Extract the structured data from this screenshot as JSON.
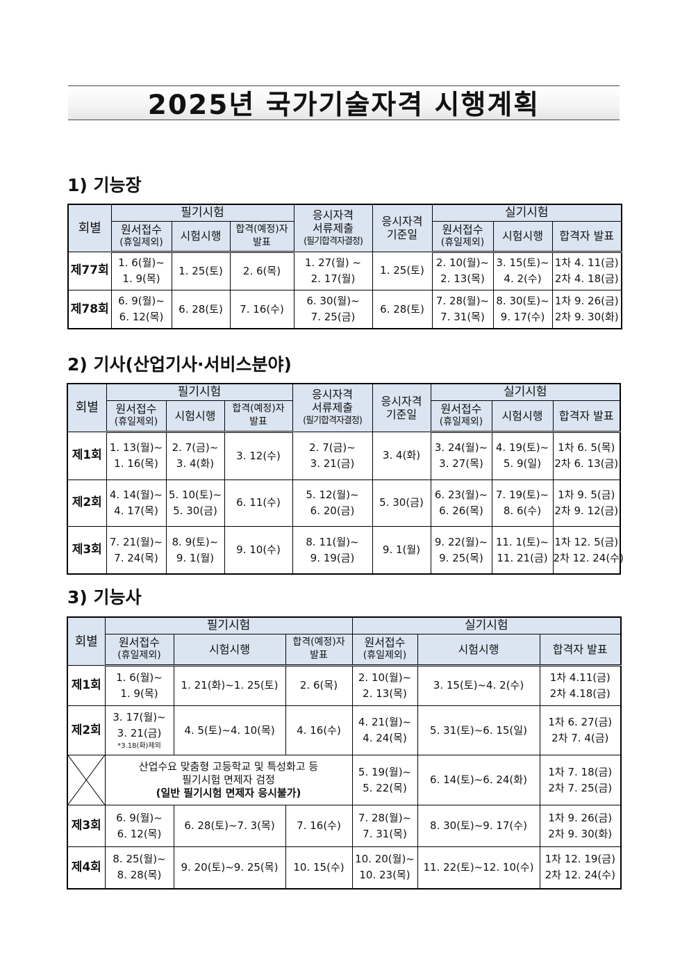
{
  "title": "2025년 국가기술자격 시행계획",
  "sections": {
    "s1": "1)  기능장",
    "s2": "2)  기사(산업기사·서비스분야)",
    "s3": "3)  기능사"
  },
  "headers": {
    "round": "회별",
    "written": "필기시험",
    "practical": "실기시험",
    "apply_1": "원서접수",
    "apply_2": "(휴일제외)",
    "exam": "시험시행",
    "pass_1": "합격(예정)자",
    "pass_2": "발표",
    "docs_1": "응시자격",
    "docs_2": "서류제출",
    "docs_3": "(필기합격자결정)",
    "basis_1": "응시자격",
    "basis_2": "기준일",
    "announce": "합격자 발표"
  },
  "table1": {
    "rows": [
      {
        "round": "제77회",
        "w_apply": [
          "1. 6(월)~",
          "1. 9(목)"
        ],
        "w_exam": "1. 25(토)",
        "w_pass": "2. 6(목)",
        "docs": [
          "1. 27(월) ~",
          "2. 17(월)"
        ],
        "basis": "1. 25(토)",
        "p_apply": [
          "2. 10(월)~",
          "2. 13(목)"
        ],
        "p_exam": [
          "3. 15(토)~",
          "4. 2(수)"
        ],
        "p_pass": [
          "1차 4. 11(금)",
          "2차 4. 18(금)"
        ]
      },
      {
        "round": "제78회",
        "w_apply": [
          "6. 9(월)~",
          "6. 12(목)"
        ],
        "w_exam": "6. 28(토)",
        "w_pass": "7. 16(수)",
        "docs": [
          "6. 30(월)~",
          "7. 25(금)"
        ],
        "basis": "6. 28(토)",
        "p_apply": [
          "7. 28(월)~",
          "7. 31(목)"
        ],
        "p_exam": [
          "8. 30(토)~",
          "9. 17(수)"
        ],
        "p_pass": [
          "1차 9. 26(금)",
          "2차 9. 30(화)"
        ]
      }
    ]
  },
  "table2": {
    "rows": [
      {
        "round": "제1회",
        "w_apply": [
          "1. 13(월)~",
          "1. 16(목)"
        ],
        "w_exam": [
          "2. 7(금)~",
          "3. 4(화)"
        ],
        "w_pass": "3. 12(수)",
        "docs": [
          "2. 7(금)~",
          "3. 21(금)"
        ],
        "basis": "3. 4(화)",
        "p_apply": [
          "3. 24(월)~",
          "3. 27(목)"
        ],
        "p_exam": [
          "4. 19(토)~",
          "5. 9(일)"
        ],
        "p_pass": [
          "1차 6. 5(목)",
          "2차 6. 13(금)"
        ]
      },
      {
        "round": "제2회",
        "w_apply": [
          "4. 14(월)~",
          "4. 17(목)"
        ],
        "w_exam": [
          "5. 10(토)~",
          "5. 30(금)"
        ],
        "w_pass": "6. 11(수)",
        "docs": [
          "5. 12(월)~",
          "6. 20(금)"
        ],
        "basis": "5. 30(금)",
        "p_apply": [
          "6. 23(월)~",
          "6. 26(목)"
        ],
        "p_exam": [
          "7. 19(토)~",
          "8. 6(수)"
        ],
        "p_pass": [
          "1차 9.  5(금)",
          "2차 9. 12(금)"
        ]
      },
      {
        "round": "제3회",
        "w_apply": [
          "7. 21(월)~",
          "7. 24(목)"
        ],
        "w_exam": [
          "8. 9(토)~",
          "9. 1(월)"
        ],
        "w_pass": "9. 10(수)",
        "docs": [
          "8. 11(월)~",
          "9. 19(금)"
        ],
        "basis": "9. 1(월)",
        "p_apply": [
          "9. 22(월)~",
          "9. 25(목)"
        ],
        "p_exam": [
          "11. 1(토)~",
          "11. 21(금)"
        ],
        "p_pass": [
          "1차 12.  5(금)",
          "2차 12. 24(수)"
        ]
      }
    ]
  },
  "table3": {
    "rows": [
      {
        "round": "제1회",
        "w_apply": [
          "1. 6(월)~",
          "1. 9(목)"
        ],
        "w_exam": "1. 21(화)~1. 25(토)",
        "w_pass": "2. 6(목)",
        "p_apply": [
          "2. 10(월)~",
          "2. 13(목)"
        ],
        "p_exam": "3. 15(토)~4. 2(수)",
        "p_pass": [
          "1차 4.11(금)",
          "2차 4.18(금)"
        ]
      },
      {
        "round": "제2회",
        "w_apply": [
          "3. 17(월)~",
          "3. 21(금)"
        ],
        "w_note": "*3.18(화)제외",
        "w_exam": "4. 5(토)~4. 10(목)",
        "w_pass": "4. 16(수)",
        "p_apply": [
          "4. 21(월)~",
          "4. 24(목)"
        ],
        "p_exam": "5. 31(토)~6. 15(일)",
        "p_pass": [
          "1차 6. 27(금)",
          "2차 7. 4(금)"
        ]
      },
      {
        "special": [
          "산업수요 맞춤형 고등학교 및 특성화고 등",
          "필기시험 면제자 검정",
          "(일반 필기시험 면제자 응시불가)"
        ],
        "p_apply": [
          "5. 19(월)~",
          "5. 22(목)"
        ],
        "p_exam": "6. 14(토)~6. 24(화)",
        "p_pass": [
          "1차 7. 18(금)",
          "2차 7. 25(금)"
        ]
      },
      {
        "round": "제3회",
        "w_apply": [
          "6. 9(월)~",
          "6. 12(목)"
        ],
        "w_exam": "6. 28(토)~7. 3(목)",
        "w_pass": "7. 16(수)",
        "p_apply": [
          "7. 28(월)~",
          "7. 31(목)"
        ],
        "p_exam": "8. 30(토)~9. 17(수)",
        "p_pass": [
          "1차 9. 26(금)",
          "2차 9. 30(화)"
        ]
      },
      {
        "round": "제4회",
        "w_apply": [
          "8. 25(월)~",
          "8. 28(목)"
        ],
        "w_exam": "9. 20(토)~9. 25(목)",
        "w_pass": "10. 15(수)",
        "p_apply": [
          "10. 20(월)~",
          "10. 23(목)"
        ],
        "p_exam": "11. 22(토)~12. 10(수)",
        "p_pass": [
          "1차 12. 19(금)",
          "2차 12. 24(수)"
        ]
      }
    ]
  }
}
